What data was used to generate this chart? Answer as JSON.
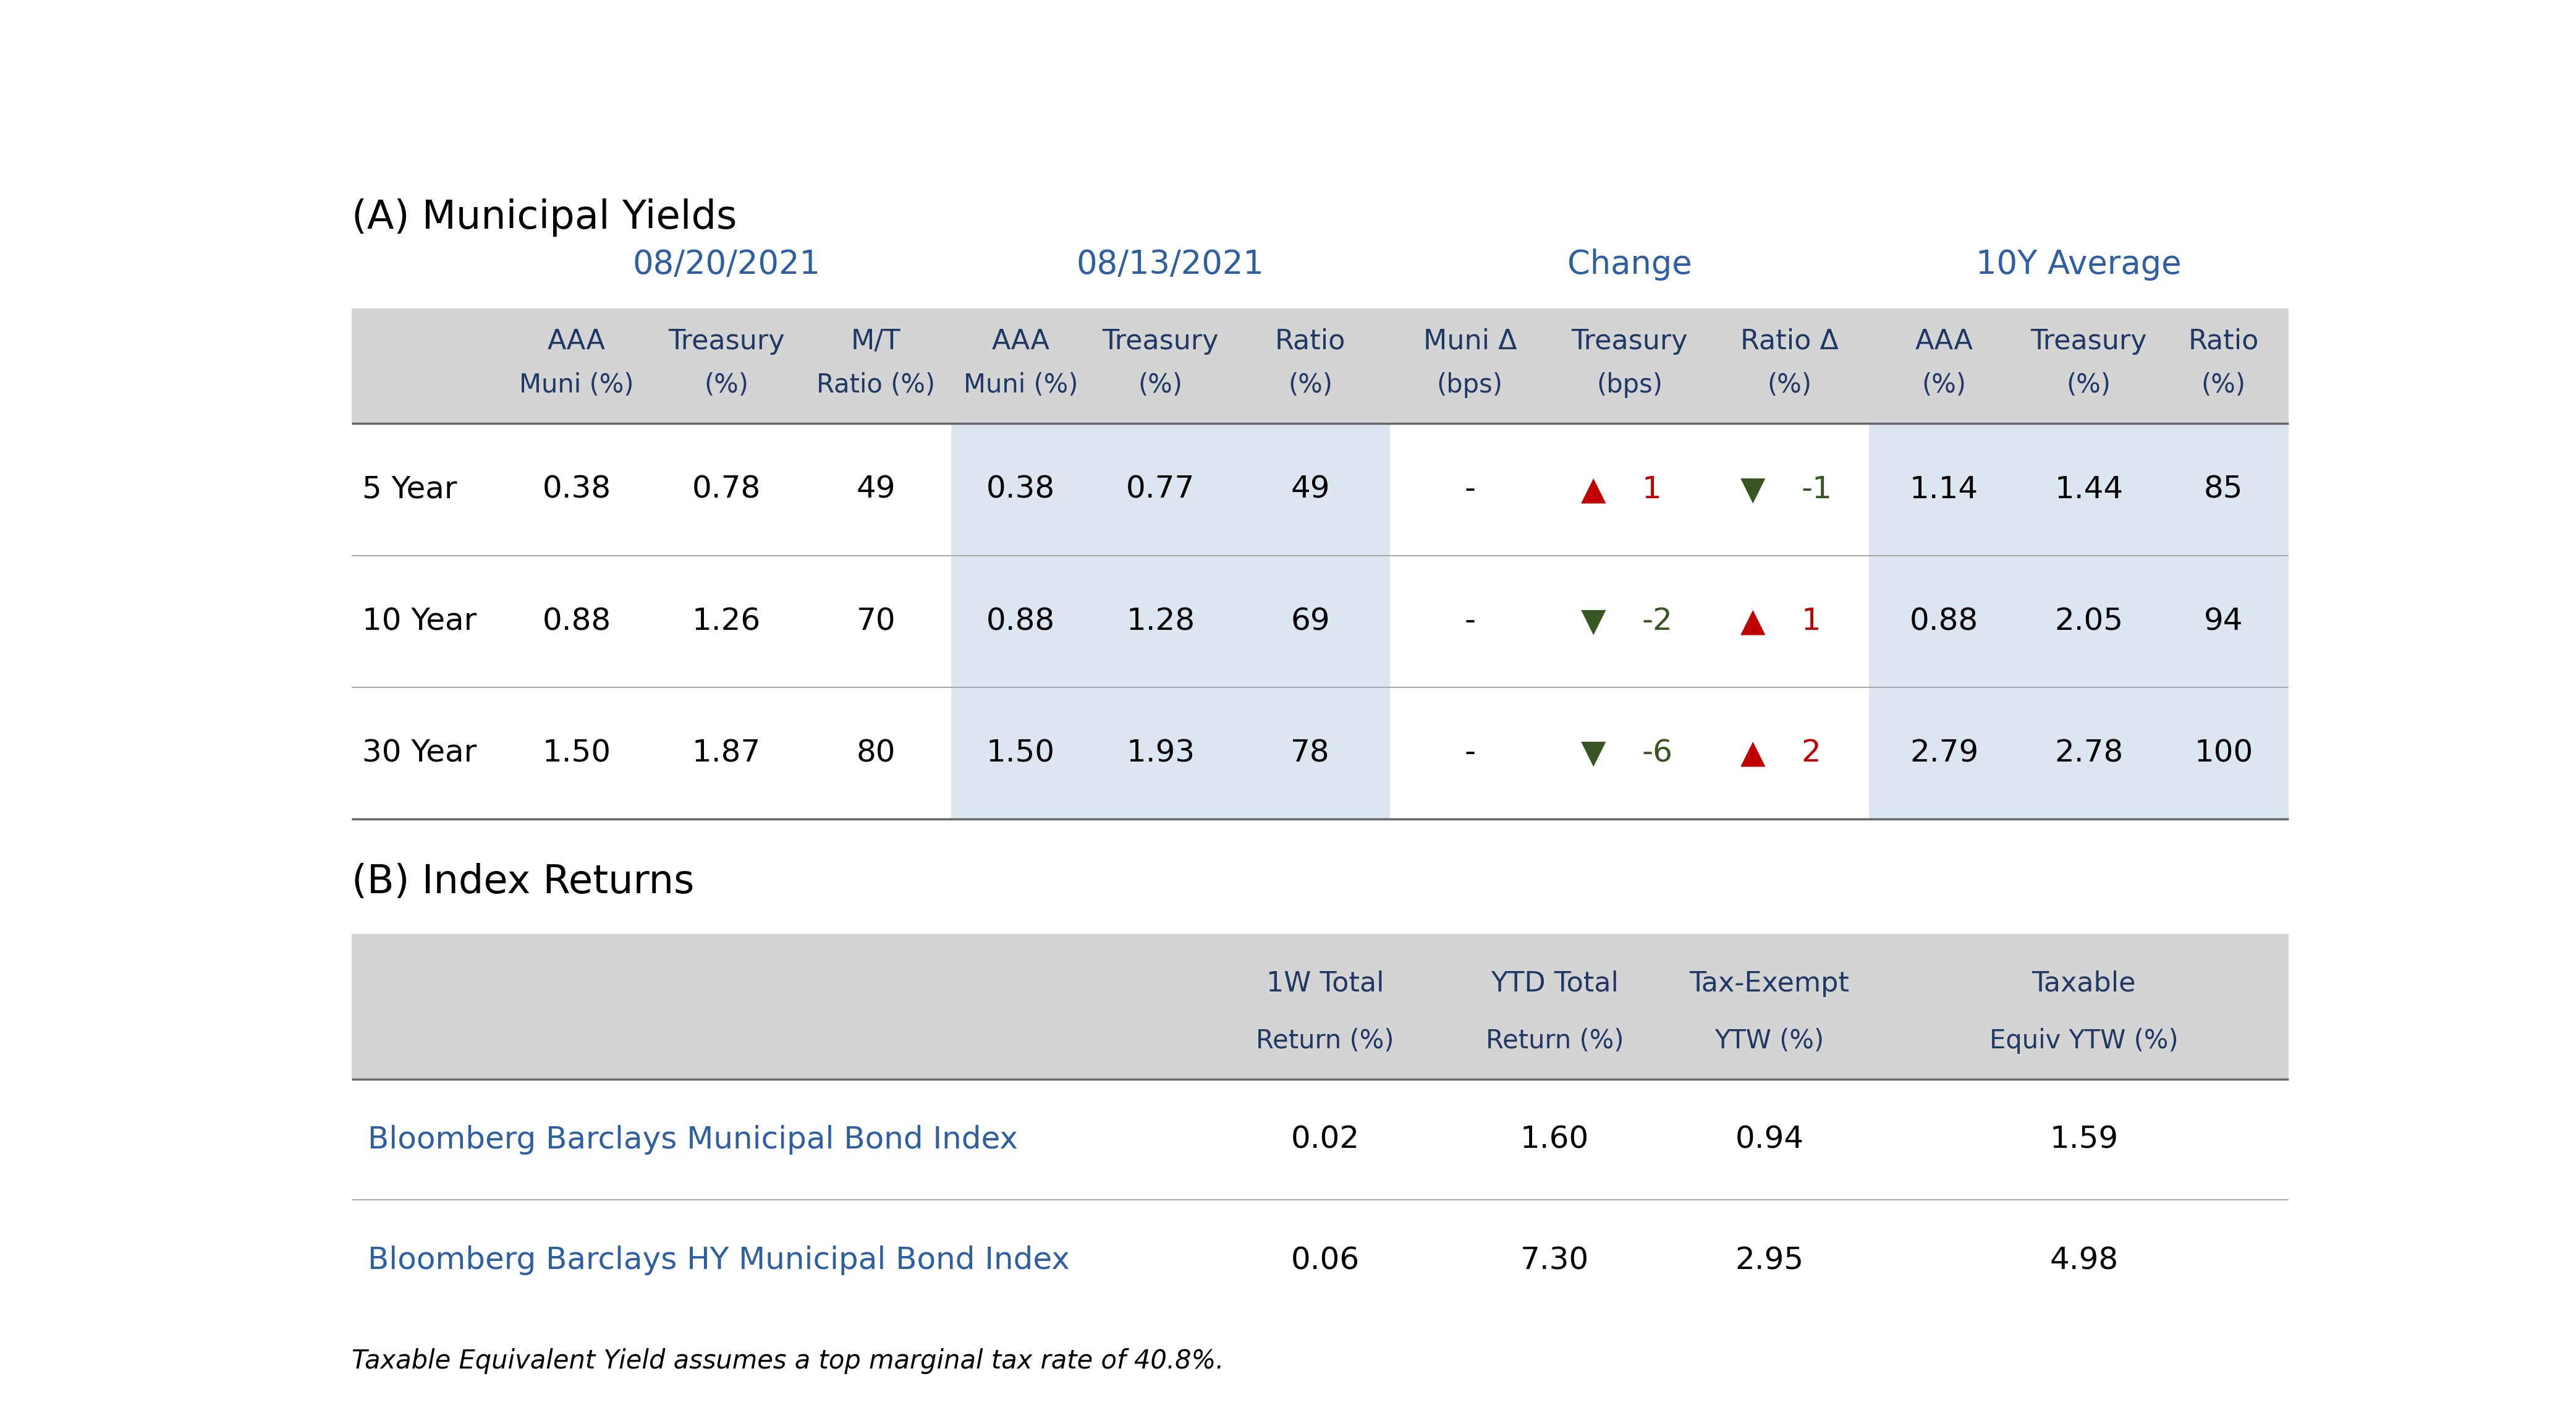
{
  "title_a": "(A) Municipal Yields",
  "title_b": "(B) Index Returns",
  "footnote": "Taxable Equivalent Yield assumes a top marginal tax rate of 40.8%.",
  "background_color": "#ffffff",
  "light_gray": "#d4d4d4",
  "col_alt_gray": "#dce6f1",
  "dark_blue": "#1f3864",
  "header_blue": "#2e5fa3",
  "red_color": "#c00000",
  "green_color": "#375623",
  "section_a": {
    "date1": "08/20/2021",
    "date2": "08/13/2021",
    "group3": "Change",
    "group4": "10Y Average",
    "col_headers_line1": [
      "AAA",
      "Treasury",
      "M/T",
      "AAA",
      "Treasury",
      "Ratio",
      "Muni Δ",
      "Treasury",
      "Ratio Δ",
      "AAA",
      "Treasury",
      "Ratio"
    ],
    "col_headers_line2": [
      "Muni (%)",
      "(%)",
      "Ratio (%)",
      "Muni (%)",
      "(%)",
      "(%)",
      "(bps)",
      "(bps)",
      "(%)",
      "(%)",
      "(%)",
      "(%)"
    ],
    "row_labels": [
      "5 Year",
      "10 Year",
      "30 Year"
    ],
    "rows": [
      [
        "0.38",
        "0.78",
        "49",
        "0.38",
        "0.77",
        "49",
        "-",
        "▲",
        "1",
        "▼",
        "-1",
        "1.14",
        "1.44",
        "85"
      ],
      [
        "0.88",
        "1.26",
        "70",
        "0.88",
        "1.28",
        "69",
        "-",
        "▼",
        "-2",
        "▲",
        "1",
        "0.88",
        "2.05",
        "94"
      ],
      [
        "1.50",
        "1.87",
        "80",
        "1.50",
        "1.93",
        "78",
        "-",
        "▼",
        "-6",
        "▲",
        "2",
        "2.79",
        "2.78",
        "100"
      ]
    ],
    "tri8_colors": [
      "red",
      "green",
      "green"
    ],
    "num8_colors": [
      "red",
      "green",
      "green"
    ],
    "tri9_colors": [
      "green",
      "red",
      "red"
    ],
    "num9_colors": [
      "green",
      "red",
      "red"
    ]
  },
  "section_b": {
    "col_headers_line1": [
      "1W Total",
      "YTD Total",
      "Tax-Exempt",
      "Taxable"
    ],
    "col_headers_line2": [
      "Return (%)",
      "Return (%)",
      "YTW (%)",
      "Equiv YTW (%)"
    ],
    "row_labels": [
      "Bloomberg Barclays Municipal Bond Index",
      "Bloomberg Barclays HY Municipal Bond Index"
    ],
    "rows": [
      [
        "0.02",
        "1.60",
        "0.94",
        "1.59"
      ],
      [
        "0.06",
        "7.30",
        "2.95",
        "4.98"
      ]
    ]
  }
}
